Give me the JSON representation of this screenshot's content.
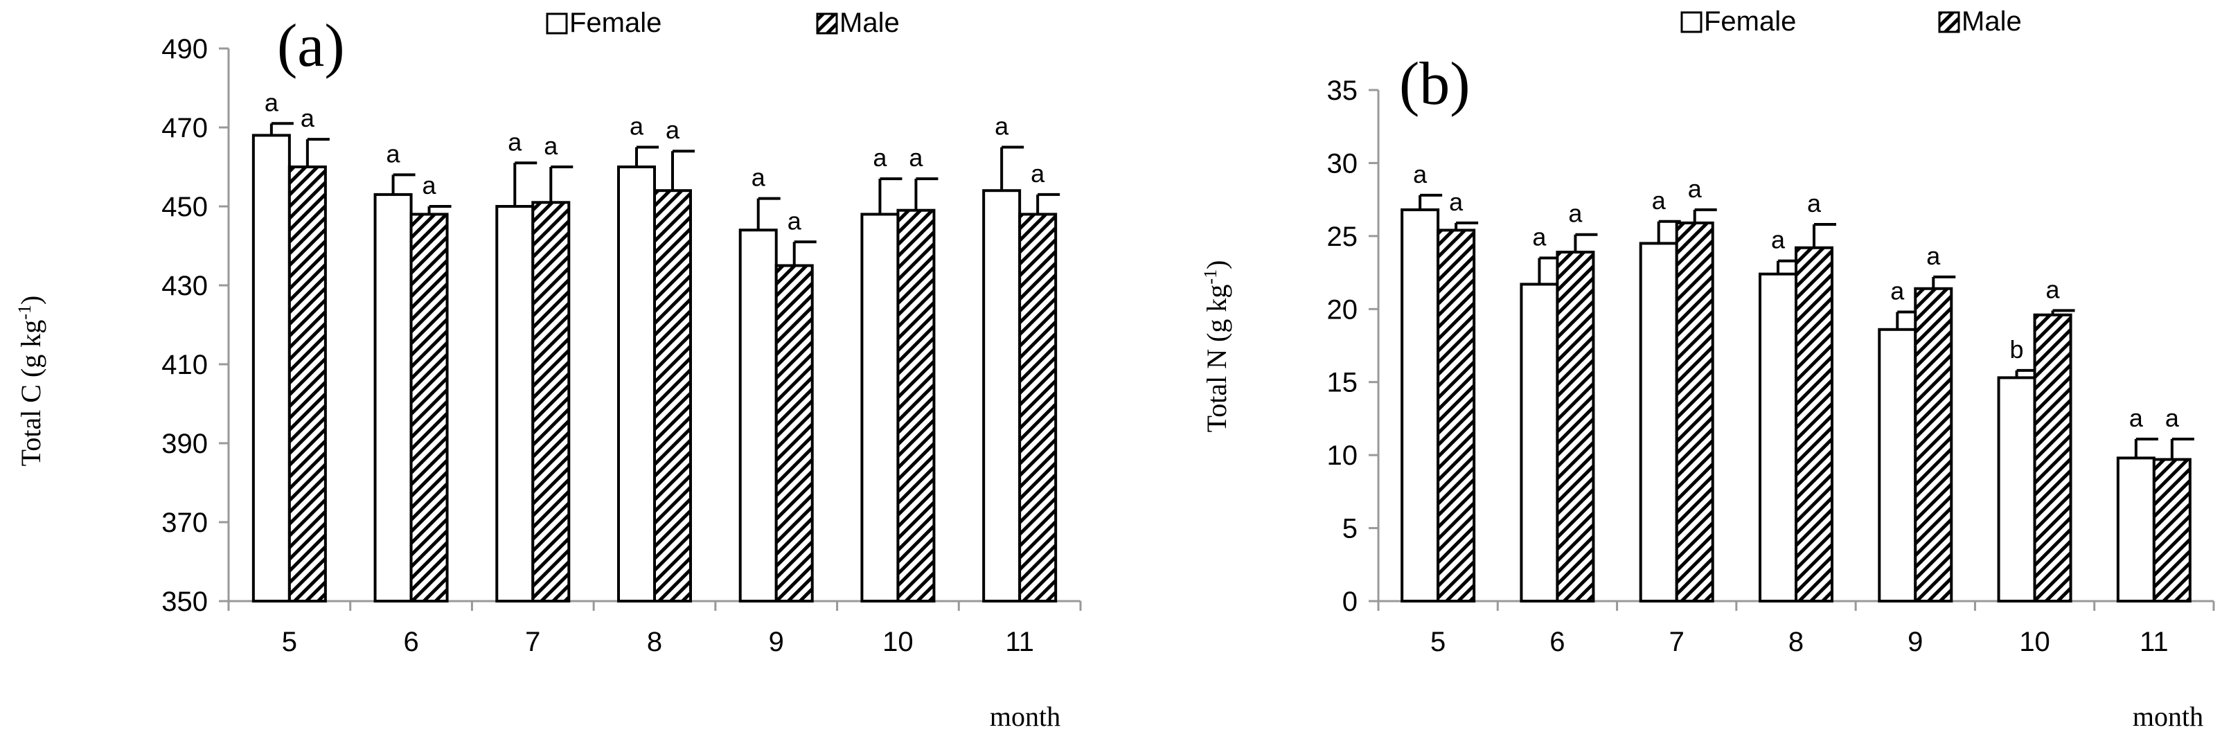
{
  "chart_data": [
    {
      "type": "bar",
      "panel_label": "(a)",
      "categories": [
        "5",
        "6",
        "7",
        "8",
        "9",
        "10",
        "11"
      ],
      "series": [
        {
          "name": "Female",
          "values": [
            468,
            453,
            450,
            460,
            444,
            448,
            454
          ],
          "errors": [
            3,
            5,
            11,
            5,
            8,
            9,
            11
          ],
          "letters": [
            "a",
            "a",
            "a",
            "a",
            "a",
            "a",
            "a"
          ]
        },
        {
          "name": "Male",
          "values": [
            460,
            448,
            451,
            454,
            435,
            449,
            448
          ],
          "errors": [
            7,
            2,
            9,
            10,
            6,
            8,
            5
          ],
          "letters": [
            "a",
            "a",
            "a",
            "a",
            "a",
            "a",
            "a"
          ]
        }
      ],
      "ylabel_main": "Total  C  (g kg",
      "ylabel_sup": "-1",
      "ylabel_end": ")",
      "xlabel": "month",
      "ylim": [
        350,
        490
      ],
      "yticks": [
        350,
        370,
        390,
        410,
        430,
        450,
        470,
        490
      ],
      "legend": "top-center",
      "grid": false
    },
    {
      "type": "bar",
      "panel_label": "(b)",
      "categories": [
        "5",
        "6",
        "7",
        "8",
        "9",
        "10",
        "11"
      ],
      "series": [
        {
          "name": "Female",
          "values": [
            26.8,
            21.7,
            24.5,
            22.4,
            18.6,
            15.3,
            9.8
          ],
          "errors": [
            1.0,
            1.8,
            1.5,
            0.9,
            1.2,
            0.5,
            1.3
          ],
          "letters": [
            "a",
            "a",
            "a",
            "a",
            "a",
            "b",
            "a"
          ]
        },
        {
          "name": "Male",
          "values": [
            25.4,
            23.9,
            25.9,
            24.2,
            21.4,
            19.6,
            9.7
          ],
          "errors": [
            0.5,
            1.2,
            0.9,
            1.6,
            0.8,
            0.3,
            1.4
          ],
          "letters": [
            "a",
            "a",
            "a",
            "a",
            "a",
            "a",
            "a"
          ]
        }
      ],
      "ylabel_main": "Total  N  (g kg",
      "ylabel_sup": "-1",
      "ylabel_end": ")",
      "xlabel": "month",
      "ylim": [
        0,
        35
      ],
      "yticks": [
        0,
        5,
        10,
        15,
        20,
        25,
        30,
        35
      ],
      "legend": "top-center",
      "grid": false
    }
  ]
}
